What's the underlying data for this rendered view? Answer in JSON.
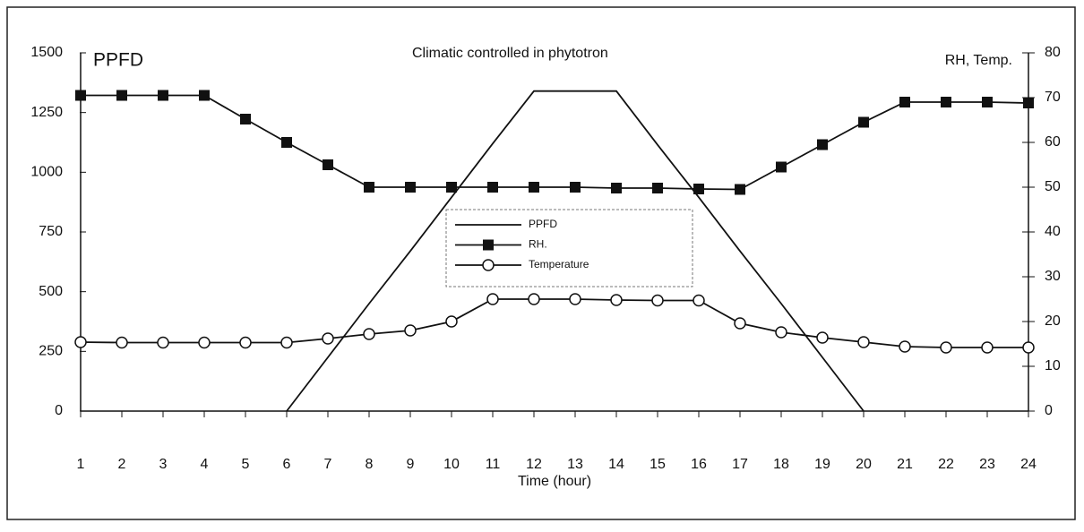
{
  "chart_data": {
    "type": "line",
    "title": "Climatic controlled in phytotron",
    "ylabel": "PPFD",
    "y2label": "RH, Temp.",
    "xlabel": "Time (hour)",
    "x": [
      1,
      2,
      3,
      4,
      5,
      6,
      7,
      8,
      9,
      10,
      11,
      12,
      13,
      14,
      15,
      16,
      17,
      18,
      19,
      20,
      21,
      22,
      23,
      24
    ],
    "xlim": [
      1,
      24
    ],
    "xticks": [
      1,
      2,
      3,
      4,
      5,
      6,
      7,
      8,
      9,
      10,
      11,
      12,
      13,
      14,
      15,
      16,
      17,
      18,
      19,
      20,
      21,
      22,
      23,
      24
    ],
    "ylim": [
      0,
      1500
    ],
    "yticks": [
      0,
      250,
      500,
      750,
      1000,
      1250,
      1500
    ],
    "y2lim": [
      0,
      80
    ],
    "y2ticks": [
      0,
      10,
      20,
      30,
      40,
      50,
      60,
      70,
      80
    ],
    "series": [
      {
        "name": "PPFD",
        "color": "#111111",
        "values": [
          null,
          null,
          null,
          null,
          null,
          0,
          225,
          450,
          670,
          895,
          1120,
          1340,
          1340,
          1340,
          1115,
          895,
          670,
          450,
          225,
          0,
          null,
          null,
          null,
          null
        ]
      },
      {
        "name": "RH.",
        "color": "#111111",
        "axis": "y2",
        "marker": "square",
        "values": [
          70.5,
          70.5,
          70.5,
          70.5,
          65.2,
          60,
          55,
          50,
          50,
          50,
          50,
          50,
          50,
          49.8,
          49.8,
          49.6,
          49.5,
          54.5,
          59.5,
          64.5,
          69,
          69,
          69,
          68.8
        ]
      },
      {
        "name": "Temperature",
        "color": "#111111",
        "axis": "y2",
        "marker": "circle",
        "values": [
          15.4,
          15.3,
          15.3,
          15.3,
          15.3,
          15.3,
          16.2,
          17.2,
          18,
          20,
          25,
          25,
          25,
          24.8,
          24.7,
          24.7,
          19.6,
          17.6,
          16.4,
          15.4,
          14.4,
          14.2,
          14.2,
          14.2
        ]
      }
    ]
  }
}
